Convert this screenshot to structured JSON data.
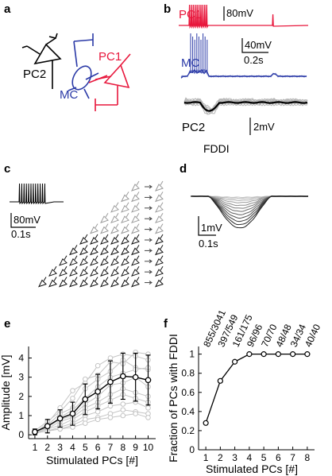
{
  "panels": {
    "a": {
      "label": "a",
      "cells": {
        "pc1": "PC1",
        "pc2": "PC2",
        "mc": "MC"
      },
      "colors": {
        "pc1": "#e8173c",
        "mc": "#2b3aa7",
        "pc2": "#000000"
      }
    },
    "b": {
      "label": "b",
      "trace_labels": {
        "pc1": "PC1",
        "mc": "MC",
        "pc2": "PC2"
      },
      "scale_pc1": "80mV",
      "scale_mc_v": "40mV",
      "scale_mc_t": "0.2s",
      "scale_pc2_v": "2mV",
      "event_label": "FDDI"
    },
    "c": {
      "label": "c",
      "scale_v": "80mV",
      "scale_t": "0.1s",
      "grid_rows": [
        1,
        2,
        3,
        4,
        5,
        6,
        7,
        8,
        9,
        10
      ]
    },
    "d": {
      "label": "d",
      "scale_v": "1mV",
      "scale_t": "0.1s"
    },
    "e": {
      "label": "e"
    },
    "f": {
      "label": "f"
    }
  },
  "chart_data": [
    {
      "type": "line",
      "panel": "e",
      "xlabel": "Stimulated PCs [#]",
      "ylabel": "Amplitude [mV]",
      "x": [
        1,
        2,
        3,
        4,
        5,
        6,
        7,
        8,
        9,
        10
      ],
      "xlim": [
        0.5,
        10.6
      ],
      "ylim": [
        -0.2,
        4.6
      ],
      "yticks": [
        0,
        1,
        2,
        3,
        4
      ],
      "xticks": [
        1,
        2,
        3,
        4,
        5,
        6,
        7,
        8,
        9,
        10
      ],
      "mean": [
        0.15,
        0.45,
        0.85,
        1.1,
        1.85,
        2.25,
        2.75,
        3.05,
        3.0,
        2.85
      ],
      "sd": [
        0.15,
        0.35,
        0.45,
        0.6,
        0.8,
        0.9,
        1.1,
        1.2,
        1.25,
        1.3
      ],
      "individual": [
        [
          0.1,
          0.6,
          1.4,
          2.3,
          2.7,
          3.6,
          4.0,
          4.2,
          4.1,
          3.9
        ],
        [
          0.2,
          0.7,
          1.2,
          1.9,
          2.9,
          3.1,
          3.8,
          3.7,
          4.3,
          4.2
        ],
        [
          0.1,
          0.5,
          1.1,
          1.4,
          2.4,
          2.9,
          3.3,
          3.9,
          3.5,
          3.4
        ],
        [
          0.2,
          0.4,
          0.9,
          1.3,
          1.9,
          2.5,
          3.0,
          3.2,
          3.4,
          3.5
        ],
        [
          0.1,
          0.4,
          0.8,
          1.0,
          1.6,
          2.0,
          2.6,
          2.7,
          3.0,
          2.5
        ],
        [
          0.2,
          0.3,
          0.7,
          0.9,
          1.4,
          1.7,
          2.1,
          2.4,
          2.2,
          2.0
        ],
        [
          0.1,
          0.3,
          0.5,
          0.8,
          1.2,
          1.5,
          1.8,
          2.1,
          1.9,
          1.7
        ],
        [
          0.1,
          0.2,
          0.4,
          0.6,
          1.0,
          1.2,
          1.5,
          1.6,
          1.7,
          1.4
        ],
        [
          0.1,
          0.2,
          0.3,
          0.5,
          0.8,
          0.9,
          1.1,
          1.3,
          1.2,
          1.1
        ],
        [
          0.1,
          0.2,
          0.3,
          0.4,
          0.6,
          0.8,
          0.9,
          1.0,
          1.1,
          0.9
        ]
      ],
      "colors": {
        "mean": "#000000",
        "individual": "#c4c4c4"
      }
    },
    {
      "type": "line",
      "panel": "f",
      "xlabel": "Stimulated PCs [#]",
      "ylabel": "Fraction of PCs with FDDI",
      "x": [
        1,
        2,
        3,
        4,
        5,
        6,
        7,
        8
      ],
      "xlim": [
        0.5,
        8.5
      ],
      "ylim": [
        0,
        1.08
      ],
      "yticks": [
        0,
        0.2,
        0.4,
        0.6,
        0.8,
        1
      ],
      "ytick_labels": [
        "0",
        "0.2",
        "0.4",
        "0.6",
        "0.8",
        "1"
      ],
      "xticks": [
        1,
        2,
        3,
        4,
        5,
        6,
        7,
        8
      ],
      "values": [
        0.28,
        0.72,
        0.92,
        1.0,
        1.0,
        1.0,
        1.0,
        1.0
      ],
      "annotations": [
        "855/3041",
        "397/549",
        "161/175",
        "96/96",
        "70/70",
        "48/48",
        "34/34",
        "40/40"
      ]
    }
  ]
}
